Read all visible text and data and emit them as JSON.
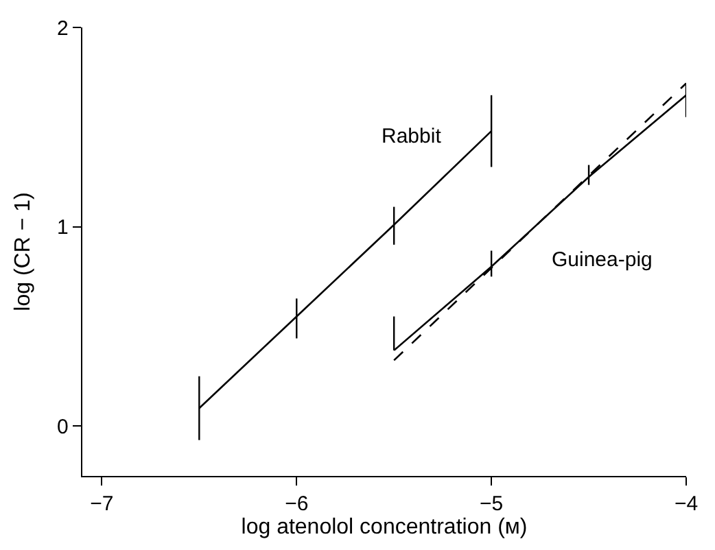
{
  "chart_data": {
    "type": "line",
    "xlabel": "log atenolol concentration (ᴍ)",
    "ylabel": "log (CR − 1)",
    "series": [
      {
        "name": "Rabbit",
        "color": "#000000",
        "x": [
          -6.5,
          -6,
          -5.5,
          -5
        ],
        "values": [
          0.09,
          0.55,
          1.01,
          1.48
        ],
        "errors": [
          [
            -0.07,
            0.25
          ],
          [
            0.44,
            0.64
          ],
          [
            0.91,
            1.1
          ],
          [
            1.3,
            1.66
          ]
        ]
      },
      {
        "name": "Guinea-pig",
        "color": "#000000",
        "x": [
          -5.5,
          -5,
          -4.5,
          -4
        ],
        "values": [
          0.38,
          0.8,
          1.25,
          1.66
        ],
        "errors": [
          [
            0.38,
            0.55
          ],
          [
            0.75,
            0.88
          ],
          [
            1.21,
            1.31
          ],
          [
            1.55,
            1.72
          ]
        ]
      },
      {
        "color": "#000000",
        "x": [
          -5.5,
          -4
        ],
        "values": [
          0.33,
          1.72
        ],
        "line_style": "dashed"
      }
    ],
    "xlim": [
      -7.1,
      -4
    ],
    "xticks": [
      {
        "value": -7,
        "label": "−7"
      },
      {
        "value": -6,
        "label": "−6"
      },
      {
        "value": -5,
        "label": "−5"
      },
      {
        "value": -4,
        "label": "−4"
      }
    ],
    "ylim": [
      -0.25,
      2
    ],
    "yticks": [
      0,
      1,
      2
    ],
    "grid": false,
    "legend": false,
    "marker": "none",
    "line_style": "solid"
  }
}
